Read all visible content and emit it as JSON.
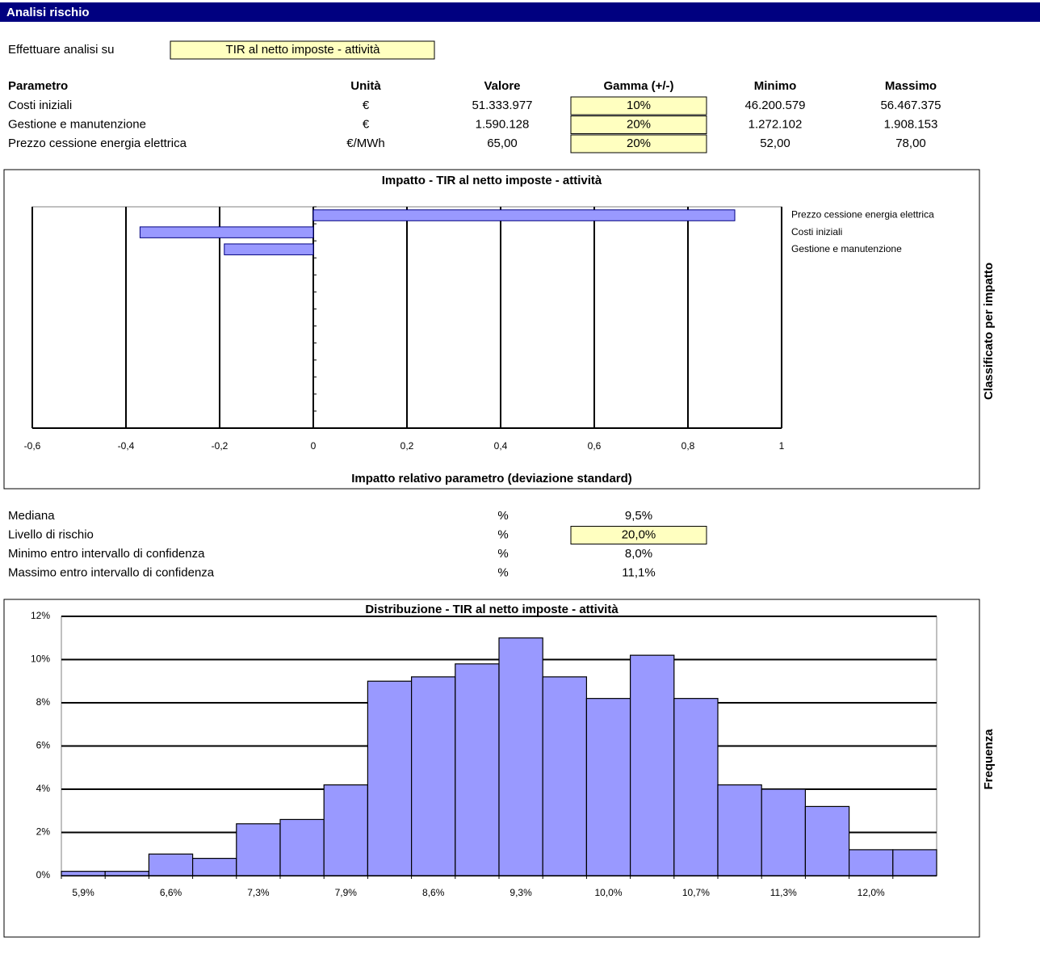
{
  "header": {
    "title": "Analisi rischio"
  },
  "selector": {
    "label": "Effettuare analisi su",
    "value": "TIR al netto imposte - attività"
  },
  "parameters": {
    "columns": [
      "Parametro",
      "Unità",
      "Valore",
      "Gamma (+/-)",
      "Minimo",
      "Massimo"
    ],
    "rows": [
      [
        "Costi iniziali",
        "€",
        "51.333.977",
        "10%",
        "46.200.579",
        "56.467.375"
      ],
      [
        "Gestione e manutenzione",
        "€",
        "1.590.128",
        "20%",
        "1.272.102",
        "1.908.153"
      ],
      [
        "Prezzo cessione energia elettrica",
        "€/MWh",
        "65,00",
        "20%",
        "52,00",
        "78,00"
      ]
    ]
  },
  "results": {
    "rows": [
      [
        "Mediana",
        "%",
        "9,5%"
      ],
      [
        "Livello di rischio",
        "%",
        "20,0%"
      ],
      [
        "Minimo entro intervallo di confidenza",
        "%",
        "8,0%"
      ],
      [
        "Massimo entro intervallo di confidenza",
        "%",
        "11,1%"
      ]
    ]
  },
  "chart_data": [
    {
      "type": "bar",
      "orientation": "horizontal",
      "title": "Impatto - TIR al netto imposte - attività",
      "x_label": "Impatto relativo parametro (deviazione standard)",
      "y_label": "Classificato per impatto",
      "categories": [
        "Prezzo cessione energia elettrica",
        "Costi iniziali",
        "Gestione e manutenzione"
      ],
      "values": [
        0.9,
        -0.37,
        -0.19
      ],
      "color": "#9999ff",
      "xlim": [
        -0.6,
        1
      ],
      "xticks": [
        {
          "value": -0.6,
          "label": "-0,6"
        },
        {
          "value": -0.4,
          "label": "-0,4"
        },
        {
          "value": -0.2,
          "label": "-0,2"
        },
        0,
        {
          "value": 0.2,
          "label": "0,2"
        },
        {
          "value": 0.4,
          "label": "0,4"
        },
        {
          "value": 0.6,
          "label": "0,6"
        },
        {
          "value": 0.8,
          "label": "0,8"
        },
        1
      ],
      "grid": true
    },
    {
      "type": "histogram",
      "title": "Distribuzione - TIR al netto imposte - attività",
      "y_label": "Frequenza",
      "categories": [
        "5,9%",
        null,
        "6,6%",
        null,
        "7,3%",
        null,
        "7,9%",
        null,
        "8,6%",
        null,
        "9,3%",
        null,
        "10,0%",
        null,
        "10,7%",
        null,
        "11,3%",
        null,
        "12,0%",
        null
      ],
      "values": [
        0.2,
        0.2,
        1.0,
        0.8,
        2.4,
        2.6,
        4.2,
        9.0,
        9.2,
        9.8,
        11.0,
        9.2,
        8.2,
        10.2,
        8.2,
        4.2,
        4.0,
        3.2,
        1.2,
        1.2
      ],
      "color": "#9999ff",
      "ylim": [
        0,
        12
      ],
      "yticks": [
        {
          "value": 0,
          "label": "0%"
        },
        {
          "value": 2,
          "label": "2%"
        },
        {
          "value": 4,
          "label": "4%"
        },
        {
          "value": 6,
          "label": "6%"
        },
        {
          "value": 8,
          "label": "8%"
        },
        {
          "value": 10,
          "label": "10%"
        },
        {
          "value": 12,
          "label": "12%"
        }
      ],
      "grid": true
    }
  ]
}
